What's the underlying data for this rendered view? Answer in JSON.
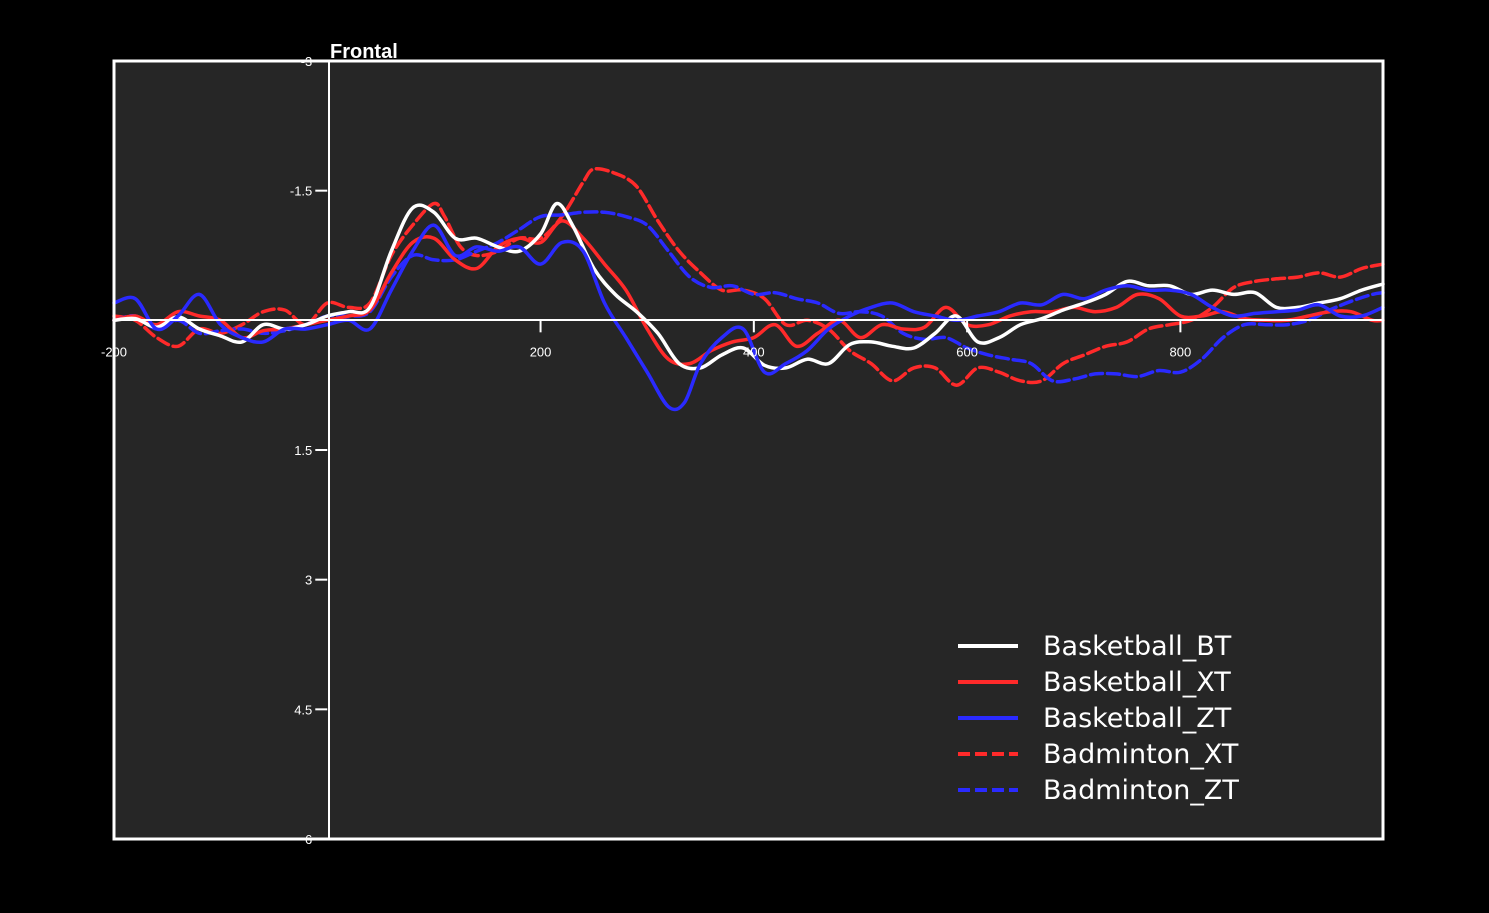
{
  "colors": {
    "page_background": "#000000",
    "plot_background": "#262626",
    "axis": "#ffffff",
    "text": "#ffffff"
  },
  "chart_data": {
    "type": "line",
    "title": "Frontal",
    "xlabel": "",
    "ylabel": "",
    "xlim": [
      -200,
      990
    ],
    "ylim": [
      -3,
      6
    ],
    "y_inverted": true,
    "grid": false,
    "legend_position": "bottom-right",
    "x_ticks": [
      -200,
      200,
      400,
      600,
      800
    ],
    "x_tick_labels": [
      "-200",
      "200",
      "400",
      "600",
      "800"
    ],
    "y_ticks": [
      -3,
      -1.5,
      1.5,
      3,
      4.5,
      6
    ],
    "y_tick_labels": [
      "-3",
      "-1.5",
      "1.5",
      "3",
      "4.5",
      "6"
    ],
    "series": [
      {
        "name": "Basketball_BT",
        "color": "#ffffff",
        "dash": "solid",
        "x": [
          -200,
          -180,
          -160,
          -140,
          -120,
          -100,
          -80,
          -60,
          -40,
          -20,
          0,
          20,
          40,
          60,
          80,
          100,
          120,
          140,
          160,
          180,
          200,
          215,
          230,
          250,
          270,
          290,
          310,
          330,
          350,
          370,
          390,
          410,
          430,
          450,
          470,
          490,
          510,
          530,
          550,
          570,
          590,
          610,
          630,
          650,
          670,
          690,
          710,
          730,
          750,
          770,
          790,
          810,
          830,
          850,
          870,
          890,
          910,
          930,
          950,
          970,
          990
        ],
        "y": [
          0.0,
          -0.02,
          0.08,
          -0.04,
          0.1,
          0.18,
          0.25,
          0.05,
          0.1,
          0.05,
          -0.05,
          -0.1,
          -0.15,
          -0.8,
          -1.3,
          -1.25,
          -0.95,
          -0.95,
          -0.85,
          -0.8,
          -1.0,
          -1.35,
          -1.1,
          -0.6,
          -0.3,
          -0.1,
          0.15,
          0.5,
          0.55,
          0.4,
          0.32,
          0.52,
          0.55,
          0.45,
          0.5,
          0.28,
          0.25,
          0.3,
          0.32,
          0.15,
          -0.05,
          0.25,
          0.2,
          0.05,
          -0.02,
          -0.12,
          -0.2,
          -0.3,
          -0.45,
          -0.4,
          -0.4,
          -0.3,
          -0.35,
          -0.3,
          -0.32,
          -0.15,
          -0.15,
          -0.2,
          -0.25,
          -0.35,
          -0.42
        ]
      },
      {
        "name": "Basketball_XT",
        "color": "#ff2a2a",
        "dash": "solid",
        "x": [
          -200,
          -180,
          -160,
          -140,
          -120,
          -100,
          -80,
          -60,
          -40,
          -20,
          0,
          20,
          40,
          60,
          80,
          100,
          120,
          140,
          160,
          180,
          200,
          220,
          240,
          260,
          280,
          300,
          320,
          340,
          360,
          380,
          400,
          420,
          440,
          460,
          480,
          500,
          520,
          540,
          560,
          580,
          600,
          620,
          640,
          660,
          680,
          700,
          720,
          740,
          760,
          780,
          800,
          820,
          840,
          860,
          880,
          900,
          920,
          940,
          960,
          980,
          990
        ],
        "y": [
          0.0,
          -0.05,
          0.05,
          -0.1,
          -0.05,
          0.0,
          0.2,
          0.12,
          0.1,
          0.05,
          0.0,
          -0.05,
          -0.12,
          -0.55,
          -0.9,
          -0.95,
          -0.7,
          -0.6,
          -0.85,
          -0.95,
          -0.9,
          -1.15,
          -0.95,
          -0.65,
          -0.35,
          0.1,
          0.45,
          0.5,
          0.35,
          0.25,
          0.2,
          0.05,
          0.3,
          0.15,
          0.0,
          0.2,
          0.05,
          0.1,
          0.08,
          -0.15,
          0.05,
          0.05,
          -0.05,
          -0.1,
          -0.1,
          -0.15,
          -0.1,
          -0.15,
          -0.3,
          -0.25,
          -0.05,
          -0.05,
          -0.1,
          -0.02,
          0.0,
          0.0,
          -0.05,
          -0.1,
          -0.1,
          0.0,
          0.0
        ]
      },
      {
        "name": "Basketball_ZT",
        "color": "#2a2aff",
        "dash": "solid",
        "x": [
          -200,
          -180,
          -160,
          -140,
          -120,
          -100,
          -80,
          -60,
          -40,
          -20,
          0,
          20,
          40,
          60,
          80,
          100,
          120,
          140,
          160,
          180,
          200,
          220,
          240,
          260,
          280,
          300,
          320,
          335,
          350,
          370,
          390,
          410,
          430,
          450,
          470,
          490,
          510,
          530,
          550,
          570,
          590,
          610,
          630,
          650,
          670,
          690,
          710,
          730,
          750,
          770,
          790,
          810,
          830,
          850,
          870,
          890,
          910,
          930,
          950,
          970,
          990
        ],
        "y": [
          -0.2,
          -0.25,
          0.1,
          -0.05,
          -0.3,
          0.05,
          0.2,
          0.25,
          0.1,
          0.1,
          0.05,
          0.0,
          0.1,
          -0.35,
          -0.8,
          -1.1,
          -0.75,
          -0.85,
          -0.8,
          -0.85,
          -0.65,
          -0.9,
          -0.8,
          -0.2,
          0.2,
          0.6,
          1.0,
          0.95,
          0.5,
          0.2,
          0.1,
          0.6,
          0.5,
          0.35,
          0.1,
          -0.05,
          -0.15,
          -0.2,
          -0.1,
          -0.05,
          0.0,
          -0.05,
          -0.1,
          -0.2,
          -0.18,
          -0.3,
          -0.25,
          -0.35,
          -0.4,
          -0.35,
          -0.35,
          -0.3,
          -0.15,
          -0.05,
          -0.08,
          -0.1,
          -0.12,
          -0.18,
          -0.05,
          -0.05,
          -0.15
        ]
      },
      {
        "name": "Badminton_XT",
        "color": "#ff2a2a",
        "dash": "dashed",
        "x": [
          -200,
          -180,
          -160,
          -140,
          -120,
          -100,
          -80,
          -60,
          -40,
          -20,
          0,
          20,
          40,
          60,
          80,
          100,
          110,
          125,
          140,
          160,
          180,
          200,
          220,
          240,
          250,
          270,
          290,
          310,
          330,
          350,
          370,
          390,
          410,
          430,
          450,
          470,
          490,
          510,
          530,
          550,
          570,
          590,
          610,
          630,
          650,
          670,
          690,
          710,
          730,
          750,
          770,
          790,
          810,
          830,
          850,
          870,
          890,
          910,
          930,
          950,
          970,
          990
        ],
        "y": [
          -0.05,
          0.0,
          0.2,
          0.3,
          0.1,
          0.15,
          0.05,
          -0.1,
          -0.12,
          0.05,
          -0.2,
          -0.15,
          -0.2,
          -0.75,
          -1.1,
          -1.35,
          -1.2,
          -0.85,
          -0.75,
          -0.8,
          -0.95,
          -0.95,
          -1.2,
          -1.6,
          -1.75,
          -1.7,
          -1.55,
          -1.15,
          -0.8,
          -0.55,
          -0.35,
          -0.35,
          -0.25,
          0.05,
          0.0,
          0.1,
          0.35,
          0.5,
          0.7,
          0.55,
          0.55,
          0.75,
          0.55,
          0.6,
          0.7,
          0.7,
          0.5,
          0.4,
          0.3,
          0.25,
          0.1,
          0.05,
          0.0,
          -0.15,
          -0.38,
          -0.45,
          -0.48,
          -0.5,
          -0.55,
          -0.5,
          -0.6,
          -0.65
        ]
      },
      {
        "name": "Badminton_ZT",
        "color": "#2a2aff",
        "dash": "dashed",
        "x": [
          -200,
          -180,
          -160,
          -140,
          -120,
          -100,
          -80,
          -60,
          -40,
          -20,
          0,
          20,
          40,
          60,
          80,
          100,
          120,
          140,
          160,
          180,
          200,
          220,
          240,
          260,
          280,
          300,
          320,
          340,
          360,
          380,
          400,
          420,
          440,
          460,
          480,
          500,
          520,
          540,
          560,
          580,
          600,
          620,
          640,
          660,
          680,
          700,
          720,
          740,
          760,
          780,
          800,
          820,
          840,
          860,
          880,
          900,
          920,
          940,
          960,
          980,
          990
        ],
        "y": [
          0.0,
          -0.05,
          0.1,
          0.0,
          0.15,
          0.12,
          0.1,
          0.15,
          0.12,
          0.05,
          -0.05,
          -0.05,
          -0.1,
          -0.5,
          -0.75,
          -0.7,
          -0.7,
          -0.8,
          -0.9,
          -1.05,
          -1.2,
          -1.22,
          -1.25,
          -1.25,
          -1.2,
          -1.1,
          -0.8,
          -0.5,
          -0.38,
          -0.4,
          -0.3,
          -0.32,
          -0.25,
          -0.2,
          -0.08,
          -0.1,
          -0.05,
          0.15,
          0.22,
          0.2,
          0.32,
          0.4,
          0.45,
          0.5,
          0.7,
          0.68,
          0.62,
          0.62,
          0.65,
          0.58,
          0.6,
          0.45,
          0.2,
          0.05,
          0.05,
          0.05,
          0.0,
          -0.12,
          -0.22,
          -0.3,
          -0.32
        ]
      }
    ]
  }
}
